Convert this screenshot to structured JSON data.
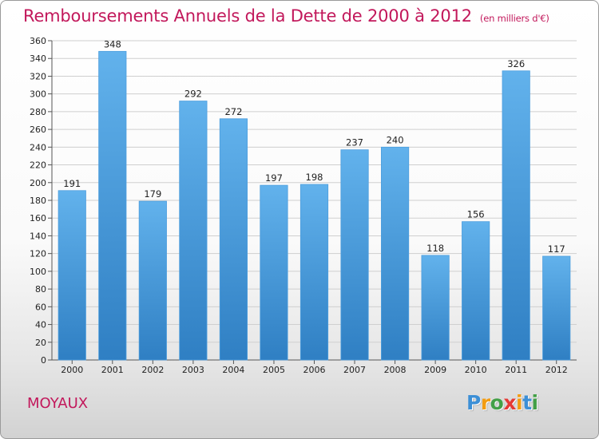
{
  "chart_data": {
    "type": "bar",
    "title": "Remboursements Annuels de la Dette de 2000 à 2012",
    "unit": "(en milliers d'€)",
    "categories": [
      "2000",
      "2001",
      "2002",
      "2003",
      "2004",
      "2005",
      "2006",
      "2007",
      "2008",
      "2009",
      "2010",
      "2011",
      "2012"
    ],
    "values": [
      191,
      348,
      179,
      292,
      272,
      197,
      198,
      237,
      240,
      118,
      156,
      326,
      117
    ],
    "ylim": [
      0,
      360
    ],
    "yticks": [
      0,
      20,
      40,
      60,
      80,
      100,
      120,
      140,
      160,
      180,
      200,
      220,
      240,
      260,
      280,
      300,
      320,
      340,
      360
    ],
    "grid": true,
    "legend": "none",
    "colors": {
      "bar_top": "#62b2ec",
      "bar_bottom": "#2f7fc3",
      "grid": "#cfcfcf",
      "title": "#c2185b"
    }
  },
  "commune": "MOYAUX",
  "brand": {
    "letters": [
      "P",
      "r",
      "o",
      "x",
      "i",
      "t",
      "i"
    ],
    "colors": [
      "#3c8fd6",
      "#f39c12",
      "#43a047",
      "#e53935",
      "#f39c12",
      "#3c8fd6",
      "#43a047"
    ]
  }
}
